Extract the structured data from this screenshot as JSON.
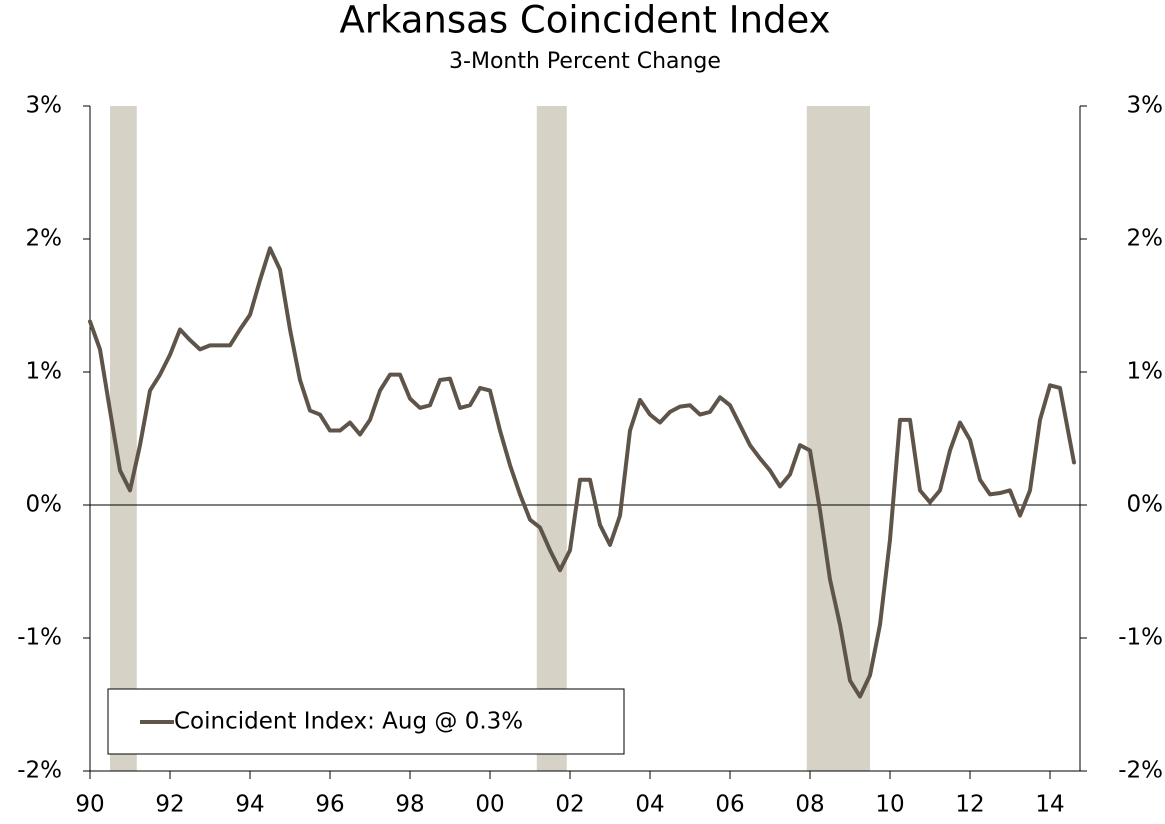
{
  "chart_data": {
    "type": "line",
    "title": "Arkansas Coincident Index",
    "subtitle": "3-Month Percent Change",
    "x": [
      1990.0,
      1990.25,
      1990.5,
      1990.75,
      1991.0,
      1991.25,
      1991.5,
      1991.75,
      1992.0,
      1992.25,
      1992.5,
      1992.75,
      1993.0,
      1993.5,
      1993.75,
      1994.0,
      1994.25,
      1994.5,
      1994.75,
      1995.0,
      1995.25,
      1995.5,
      1995.75,
      1996.0,
      1996.25,
      1996.5,
      1996.75,
      1997.0,
      1997.25,
      1997.5,
      1997.75,
      1998.0,
      1998.25,
      1998.5,
      1998.75,
      1999.0,
      1999.25,
      1999.5,
      1999.75,
      2000.0,
      2000.25,
      2000.5,
      2000.75,
      2001.0,
      2001.25,
      2001.5,
      2001.75,
      2002.0,
      2002.25,
      2002.5,
      2002.75,
      2003.0,
      2003.25,
      2003.5,
      2003.75,
      2004.0,
      2004.25,
      2004.5,
      2004.75,
      2005.0,
      2005.25,
      2005.5,
      2005.75,
      2006.0,
      2006.25,
      2006.5,
      2006.75,
      2007.0,
      2007.25,
      2007.5,
      2007.75,
      2008.0,
      2008.25,
      2008.5,
      2008.75,
      2009.0,
      2009.25,
      2009.5,
      2009.75,
      2010.0,
      2010.25,
      2010.5,
      2010.75,
      2011.0,
      2011.25,
      2011.5,
      2011.75,
      2012.0,
      2012.25,
      2012.5,
      2012.75,
      2013.0,
      2013.25,
      2013.5,
      2013.75,
      2014.0,
      2014.25,
      2014.6
    ],
    "series": [
      {
        "name": "Coincident Index: Aug @ 0.3%",
        "color": "#5f5449",
        "values": [
          1.38,
          1.17,
          0.71,
          0.26,
          0.11,
          0.45,
          0.86,
          0.98,
          1.13,
          1.32,
          1.24,
          1.17,
          1.2,
          1.2,
          1.32,
          1.43,
          1.69,
          1.93,
          1.77,
          1.32,
          0.94,
          0.71,
          0.68,
          0.56,
          0.56,
          0.62,
          0.53,
          0.64,
          0.86,
          0.98,
          0.98,
          0.8,
          0.73,
          0.75,
          0.94,
          0.95,
          0.73,
          0.75,
          0.88,
          0.86,
          0.56,
          0.3,
          0.08,
          -0.11,
          -0.17,
          -0.34,
          -0.49,
          -0.34,
          0.19,
          0.19,
          -0.15,
          -0.3,
          -0.08,
          0.56,
          0.79,
          0.68,
          0.62,
          0.7,
          0.74,
          0.75,
          0.68,
          0.7,
          0.81,
          0.75,
          0.6,
          0.45,
          0.35,
          0.26,
          0.14,
          0.23,
          0.45,
          0.41,
          -0.04,
          -0.56,
          -0.9,
          -1.32,
          -1.44,
          -1.28,
          -0.9,
          -0.26,
          0.64,
          0.64,
          0.11,
          0.02,
          0.11,
          0.41,
          0.62,
          0.49,
          0.19,
          0.08,
          0.09,
          0.11,
          -0.08,
          0.11,
          0.64,
          0.9,
          0.88,
          0.32
        ]
      }
    ],
    "recessions": [
      [
        1990.5,
        1991.17
      ],
      [
        2001.17,
        2001.92
      ],
      [
        2007.92,
        2009.5
      ]
    ],
    "recession_color": "#d6d2c6",
    "xlim": [
      1990,
      2014.75
    ],
    "xticks": [
      {
        "value": 1990,
        "label": "90"
      },
      {
        "value": 1992,
        "label": "92"
      },
      {
        "value": 1994,
        "label": "94"
      },
      {
        "value": 1996,
        "label": "96"
      },
      {
        "value": 1998,
        "label": "98"
      },
      {
        "value": 2000,
        "label": "00"
      },
      {
        "value": 2002,
        "label": "02"
      },
      {
        "value": 2004,
        "label": "04"
      },
      {
        "value": 2006,
        "label": "06"
      },
      {
        "value": 2008,
        "label": "08"
      },
      {
        "value": 2010,
        "label": "10"
      },
      {
        "value": 2012,
        "label": "12"
      },
      {
        "value": 2014,
        "label": "14"
      }
    ],
    "ylim": [
      -2,
      3
    ],
    "yticks": [
      {
        "value": -2,
        "label": "-2%"
      },
      {
        "value": -1,
        "label": "-1%"
      },
      {
        "value": 0,
        "label": "0%"
      },
      {
        "value": 1,
        "label": "1%"
      },
      {
        "value": 2,
        "label": "2%"
      },
      {
        "value": 3,
        "label": "3%"
      }
    ],
    "y2lim": [
      -2,
      3
    ],
    "y2ticks": [
      {
        "value": -2,
        "label": "-2%"
      },
      {
        "value": -1,
        "label": "-1%"
      },
      {
        "value": 0,
        "label": "0%"
      },
      {
        "value": 1,
        "label": "1%"
      },
      {
        "value": 2,
        "label": "2%"
      },
      {
        "value": 3,
        "label": "3%"
      }
    ],
    "legend": "lower left"
  }
}
